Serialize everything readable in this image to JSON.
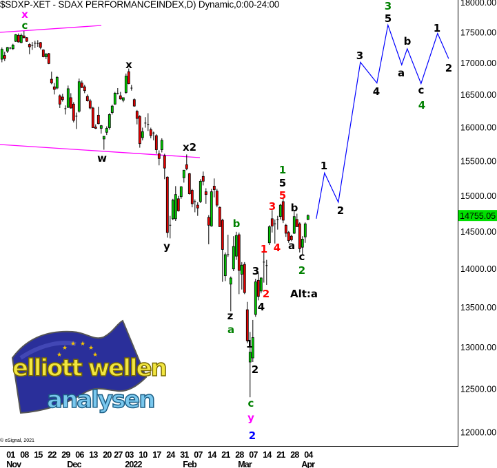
{
  "header": {
    "title": "$SDXP-XET - SDAX PERFORMANCEINDEX,D) Dynamic,0:00-24:00"
  },
  "footer": {
    "copyright": "© eSignal, 2021"
  },
  "logo": {
    "line1": "elliott wellen",
    "line2": "analysen"
  },
  "colors": {
    "up": "#00c800",
    "down": "#e80000",
    "wick": "#000000",
    "projection": "#0000ff",
    "channel": "#ff00ff",
    "last_price_bg": "#00e000",
    "wave_green": "#008000",
    "wave_red": "#ff0000",
    "wave_magenta": "#ff00ff",
    "wave_blue": "#0000ff",
    "wave_black": "#000000"
  },
  "chart_data": {
    "type": "candlestick",
    "title": "$SDXP-XET - SDAX PERFORMANCEINDEX,D) Dynamic,0:00-24:00",
    "y_scale": "log",
    "ylim": [
      12000,
      18000
    ],
    "grid": false,
    "y_ticks": [
      "18000.00",
      "17500.00",
      "17000.00",
      "16500.00",
      "16000.00",
      "15500.00",
      "15000.00",
      "14500.00",
      "14000.00",
      "13500.00",
      "13000.00",
      "12500.00",
      "12000.00"
    ],
    "last_price": "14755.05",
    "x_day_ticks": [
      {
        "label": "01",
        "date": "2021-11-01"
      },
      {
        "label": "08",
        "date": "2021-11-08"
      },
      {
        "label": "15",
        "date": "2021-11-15"
      },
      {
        "label": "22",
        "date": "2021-11-22"
      },
      {
        "label": "29",
        "date": "2021-11-29"
      },
      {
        "label": "06",
        "date": "2021-12-06"
      },
      {
        "label": "13",
        "date": "2021-12-13"
      },
      {
        "label": "20",
        "date": "2021-12-20"
      },
      {
        "label": "27",
        "date": "2021-12-27"
      },
      {
        "label": "03",
        "date": "2022-01-03"
      },
      {
        "label": "10",
        "date": "2022-01-10"
      },
      {
        "label": "17",
        "date": "2022-01-17"
      },
      {
        "label": "24",
        "date": "2022-01-24"
      },
      {
        "label": "31",
        "date": "2022-01-31"
      },
      {
        "label": "07",
        "date": "2022-02-07"
      },
      {
        "label": "14",
        "date": "2022-02-14"
      },
      {
        "label": "21",
        "date": "2022-02-21"
      },
      {
        "label": "28",
        "date": "2022-02-28"
      },
      {
        "label": "07",
        "date": "2022-03-07"
      },
      {
        "label": "14",
        "date": "2022-03-14"
      },
      {
        "label": "21",
        "date": "2022-03-21"
      },
      {
        "label": "28",
        "date": "2022-03-28"
      },
      {
        "label": "04",
        "date": "2022-04-04"
      }
    ],
    "x_month_ticks": [
      {
        "label": "Nov",
        "date": "2021-11-01"
      },
      {
        "label": "Dec",
        "date": "2021-12-01"
      },
      {
        "label": "2022",
        "date": "2022-01-03"
      },
      {
        "label": "Feb",
        "date": "2022-02-01"
      },
      {
        "label": "Mar",
        "date": "2022-03-01"
      },
      {
        "label": "Apr",
        "date": "2022-04-01"
      }
    ],
    "candles_ohlc": [
      [
        "2021-10-28",
        17100,
        17290,
        17050,
        17260
      ],
      [
        "2021-10-29",
        17160,
        17220,
        17070,
        17110
      ],
      [
        "2021-11-01",
        17230,
        17300,
        17200,
        17290
      ],
      [
        "2021-11-02",
        17280,
        17300,
        17260,
        17285
      ],
      [
        "2021-11-03",
        17270,
        17350,
        17250,
        17330
      ],
      [
        "2021-11-04",
        17390,
        17510,
        17380,
        17500
      ],
      [
        "2021-11-05",
        17490,
        17520,
        17370,
        17380
      ],
      [
        "2021-11-08",
        17370,
        17520,
        17360,
        17490
      ],
      [
        "2021-11-09",
        17480,
        17560,
        17440,
        17450
      ],
      [
        "2021-11-10",
        17450,
        17460,
        17380,
        17390
      ],
      [
        "2021-11-11",
        17340,
        17360,
        17180,
        17300
      ],
      [
        "2021-11-12",
        17320,
        17380,
        17250,
        17330
      ],
      [
        "2021-11-15",
        17360,
        17400,
        17280,
        17365
      ],
      [
        "2021-11-16",
        17360,
        17410,
        17300,
        17355
      ],
      [
        "2021-11-17",
        17370,
        17380,
        17260,
        17290
      ],
      [
        "2021-11-18",
        17250,
        17260,
        17130,
        17140
      ],
      [
        "2021-11-19",
        17140,
        17200,
        17100,
        17180
      ],
      [
        "2021-11-22",
        17190,
        17200,
        17020,
        17030
      ],
      [
        "2021-11-23",
        16780,
        16900,
        16700,
        16720
      ],
      [
        "2021-11-24",
        16660,
        16720,
        16540,
        16620
      ],
      [
        "2021-11-25",
        16640,
        16830,
        16620,
        16810
      ],
      [
        "2021-11-26",
        16520,
        16540,
        16330,
        16390
      ],
      [
        "2021-11-29",
        16500,
        16550,
        16430,
        16460
      ],
      [
        "2021-11-30",
        16320,
        16370,
        16230,
        16325
      ],
      [
        "2021-12-01",
        16340,
        16680,
        16330,
        16630
      ],
      [
        "2021-12-02",
        16490,
        16560,
        16320,
        16330
      ],
      [
        "2021-12-03",
        16390,
        16420,
        16110,
        16140
      ],
      [
        "2021-12-06",
        16200,
        16260,
        16010,
        16210
      ],
      [
        "2021-12-07",
        16280,
        16790,
        16260,
        16740
      ],
      [
        "2021-12-08",
        16720,
        16760,
        16640,
        16650
      ],
      [
        "2021-12-09",
        16660,
        16690,
        16560,
        16600
      ],
      [
        "2021-12-10",
        16510,
        16540,
        16430,
        16440
      ],
      [
        "2021-12-13",
        16440,
        16470,
        16310,
        16330
      ],
      [
        "2021-12-14",
        16330,
        16350,
        16030,
        16030
      ],
      [
        "2021-12-15",
        16040,
        16080,
        16010,
        16020
      ],
      [
        "2021-12-16",
        16220,
        16350,
        16080,
        16090
      ],
      [
        "2021-12-17",
        16020,
        16070,
        15940,
        16060
      ],
      [
        "2021-12-20",
        15860,
        15900,
        15700,
        15900
      ],
      [
        "2021-12-21",
        15960,
        16050,
        15920,
        16020
      ],
      [
        "2021-12-22",
        16030,
        16250,
        16000,
        16230
      ],
      [
        "2021-12-23",
        16260,
        16380,
        16230,
        16360
      ],
      [
        "2021-12-27",
        16390,
        16580,
        16380,
        16560
      ],
      [
        "2021-12-28",
        16560,
        16640,
        16540,
        16565
      ],
      [
        "2021-12-29",
        16520,
        16580,
        16460,
        16470
      ],
      [
        "2021-12-30",
        16450,
        16490,
        16420,
        16490
      ],
      [
        "2022-01-03",
        16570,
        16870,
        16550,
        16830
      ],
      [
        "2022-01-04",
        16900,
        16950,
        16700,
        16710
      ],
      [
        "2022-01-05",
        16640,
        16690,
        16600,
        16645
      ],
      [
        "2022-01-06",
        16460,
        16480,
        16350,
        16360
      ],
      [
        "2022-01-07",
        16280,
        16300,
        16080,
        16170
      ],
      [
        "2022-01-10",
        16200,
        16220,
        15730,
        15790
      ],
      [
        "2022-01-11",
        15880,
        16030,
        15840,
        15970
      ],
      [
        "2022-01-12",
        16100,
        16190,
        16030,
        16105
      ],
      [
        "2022-01-13",
        16080,
        16250,
        15980,
        16085
      ],
      [
        "2022-01-14",
        16000,
        16030,
        15870,
        15910
      ],
      [
        "2022-01-17",
        15950,
        15970,
        15840,
        15955
      ],
      [
        "2022-01-18",
        15910,
        15930,
        15640,
        15700
      ],
      [
        "2022-01-19",
        15640,
        15690,
        15470,
        15570
      ],
      [
        "2022-01-20",
        15700,
        15870,
        15660,
        15840
      ],
      [
        "2022-01-21",
        15610,
        15640,
        15270,
        15430
      ],
      [
        "2022-01-24",
        15300,
        15310,
        14450,
        14520
      ],
      [
        "2022-01-25",
        14620,
        14750,
        14440,
        14625
      ],
      [
        "2022-01-26",
        14710,
        14990,
        14690,
        14970
      ],
      [
        "2022-01-27",
        14710,
        15170,
        14680,
        15050
      ],
      [
        "2022-01-28",
        14990,
        15030,
        14810,
        14820
      ],
      [
        "2022-01-31",
        15020,
        15170,
        14990,
        15160
      ],
      [
        "2022-02-01",
        15290,
        15400,
        15220,
        15400
      ],
      [
        "2022-02-02",
        15480,
        15630,
        15400,
        15420
      ],
      [
        "2022-02-03",
        15350,
        15360,
        15050,
        15060
      ],
      [
        "2022-02-04",
        15110,
        15130,
        14870,
        14920
      ],
      [
        "2022-02-07",
        14950,
        14980,
        14800,
        14955
      ],
      [
        "2022-02-08",
        14900,
        14940,
        14750,
        14860
      ],
      [
        "2022-02-09",
        14950,
        15270,
        14930,
        15240
      ],
      [
        "2022-02-10",
        15310,
        15380,
        15180,
        15240
      ],
      [
        "2022-02-11",
        15090,
        15140,
        14920,
        15050
      ],
      [
        "2022-02-14",
        14730,
        14760,
        14360,
        14620
      ],
      [
        "2022-02-15",
        14610,
        15130,
        14600,
        15090
      ],
      [
        "2022-02-16",
        15170,
        15280,
        15010,
        15120
      ],
      [
        "2022-02-17",
        15100,
        15130,
        14870,
        14900
      ],
      [
        "2022-02-18",
        14870,
        14880,
        14600,
        14600
      ],
      [
        "2022-02-21",
        14690,
        14710,
        13860,
        14290
      ],
      [
        "2022-02-22",
        13940,
        14250,
        13870,
        14220
      ],
      [
        "2022-02-23",
        14220,
        14490,
        14190,
        14225
      ],
      [
        "2022-02-24",
        13830,
        13930,
        13480,
        13910
      ],
      [
        "2022-02-25",
        14030,
        14470,
        14000,
        14330
      ],
      [
        "2022-02-28",
        14200,
        14530,
        14150,
        14480
      ],
      [
        "2022-03-01",
        14490,
        14520,
        13700,
        14010
      ],
      [
        "2022-03-02",
        13960,
        14120,
        13760,
        14080
      ],
      [
        "2022-03-03",
        14090,
        14120,
        13700,
        13720
      ],
      [
        "2022-03-04",
        13500,
        13600,
        13080,
        13110
      ],
      [
        "2022-03-07",
        12850,
        13220,
        12430,
        12970
      ],
      [
        "2022-03-08",
        12900,
        13370,
        12850,
        13150
      ],
      [
        "2022-03-09",
        13440,
        13900,
        13410,
        13860
      ],
      [
        "2022-03-10",
        13880,
        13980,
        13620,
        13670
      ],
      [
        "2022-03-11",
        13740,
        13920,
        13710,
        13910
      ],
      [
        "2022-03-14",
        14120,
        14250,
        13850,
        14125
      ],
      [
        "2022-03-15",
        14070,
        14150,
        13820,
        14080
      ],
      [
        "2022-03-16",
        14380,
        14620,
        14350,
        14600
      ],
      [
        "2022-03-17",
        14710,
        14830,
        14520,
        14610
      ],
      [
        "2022-03-18",
        14640,
        14700,
        14370,
        14645
      ],
      [
        "2022-03-21",
        14700,
        14750,
        14560,
        14705
      ],
      [
        "2022-03-22",
        14740,
        14920,
        14700,
        14900
      ],
      [
        "2022-03-23",
        14950,
        15000,
        14650,
        14690
      ],
      [
        "2022-03-24",
        14620,
        14640,
        14460,
        14510
      ],
      [
        "2022-03-25",
        14520,
        14540,
        14380,
        14410
      ],
      [
        "2022-03-28",
        14470,
        14490,
        14400,
        14420
      ],
      [
        "2022-03-29",
        14510,
        14820,
        14500,
        14740
      ],
      [
        "2022-03-30",
        14700,
        14780,
        14600,
        14600
      ],
      [
        "2022-03-31",
        14640,
        14660,
        14250,
        14300
      ],
      [
        "2022-04-01",
        14320,
        14470,
        14210,
        14430
      ],
      [
        "2022-04-04",
        14460,
        14660,
        14380,
        14640
      ],
      [
        "2022-04-05",
        14700,
        14770,
        14690,
        14755.05
      ]
    ],
    "projection_path": [
      {
        "date": "2022-04-08",
        "price": 14710
      },
      {
        "date": "2022-04-13",
        "price": 15360
      },
      {
        "date": "2022-04-20",
        "price": 14940
      },
      {
        "date": "2022-05-02",
        "price": 17050
      },
      {
        "date": "2022-05-10",
        "price": 16720
      },
      {
        "date": "2022-05-16",
        "price": 17660
      },
      {
        "date": "2022-05-23",
        "price": 17010
      },
      {
        "date": "2022-05-25",
        "price": 17270
      },
      {
        "date": "2022-06-01",
        "price": 16710
      },
      {
        "date": "2022-06-09",
        "price": 17520
      },
      {
        "date": "2022-06-15",
        "price": 17110
      }
    ],
    "wave_labels": [
      {
        "text": "x",
        "color": "magenta"
      },
      {
        "text": "c",
        "color": "green"
      },
      {
        "text": "x",
        "color": "black"
      },
      {
        "text": "w",
        "color": "black"
      },
      {
        "text": "x2",
        "color": "black"
      },
      {
        "text": "y",
        "color": "black"
      },
      {
        "text": "b",
        "color": "green"
      },
      {
        "text": "z",
        "color": "black"
      },
      {
        "text": "a",
        "color": "green"
      },
      {
        "text": "1",
        "color": "black"
      },
      {
        "text": "2",
        "color": "black"
      },
      {
        "text": "c",
        "color": "green"
      },
      {
        "text": "y",
        "color": "magenta"
      },
      {
        "text": "2",
        "color": "blue"
      },
      {
        "text": "3",
        "color": "black"
      },
      {
        "text": "4",
        "color": "black"
      },
      {
        "text": "1",
        "color": "red"
      },
      {
        "text": "2",
        "color": "red"
      },
      {
        "text": "3",
        "color": "red"
      },
      {
        "text": "4",
        "color": "red"
      },
      {
        "text": "1",
        "color": "green"
      },
      {
        "text": "5",
        "color": "black"
      },
      {
        "text": "5",
        "color": "red"
      },
      {
        "text": "b",
        "color": "black"
      },
      {
        "text": "a",
        "color": "black"
      },
      {
        "text": "c",
        "color": "black"
      },
      {
        "text": "2",
        "color": "green"
      },
      {
        "text": "Alt:a",
        "color": "black"
      },
      {
        "text": "1",
        "color": "black"
      },
      {
        "text": "2",
        "color": "black"
      },
      {
        "text": "3",
        "color": "black"
      },
      {
        "text": "4",
        "color": "black"
      },
      {
        "text": "5",
        "color": "black"
      },
      {
        "text": "3",
        "color": "green"
      },
      {
        "text": "a",
        "color": "black"
      },
      {
        "text": "b",
        "color": "black"
      },
      {
        "text": "c",
        "color": "black"
      },
      {
        "text": "4",
        "color": "green"
      },
      {
        "text": "1",
        "color": "black"
      },
      {
        "text": "2",
        "color": "black"
      }
    ]
  }
}
